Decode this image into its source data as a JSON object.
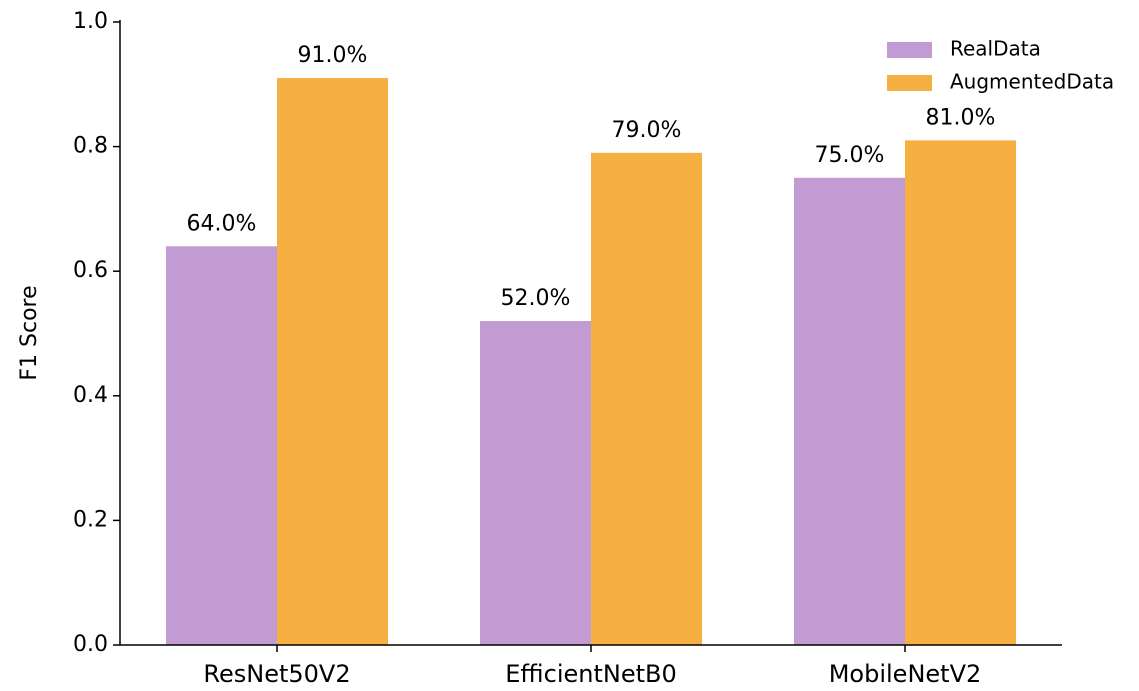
{
  "chart_data": {
    "type": "bar",
    "y_label": "F1 Score",
    "categories": [
      "ResNet50V2",
      "EfficientNetB0",
      "MobileNetV2"
    ],
    "series": [
      {
        "name": "RealData",
        "color": "#c39bd3",
        "values": [
          0.64,
          0.52,
          0.75
        ],
        "value_labels": [
          "64.0%",
          "52.0%",
          "75.0%"
        ]
      },
      {
        "name": "AugmentedData",
        "color": "#f5b041",
        "values": [
          0.91,
          0.79,
          0.81
        ],
        "value_labels": [
          "91.0%",
          "79.0%",
          "81.0%"
        ]
      }
    ],
    "ylim": [
      0,
      1
    ],
    "yticks": [
      {
        "value": 0,
        "label": "0.0"
      },
      0.2,
      0.4,
      0.6,
      0.8,
      {
        "value": 1,
        "label": "1.0"
      }
    ],
    "legend": "upper right",
    "grid": false
  }
}
